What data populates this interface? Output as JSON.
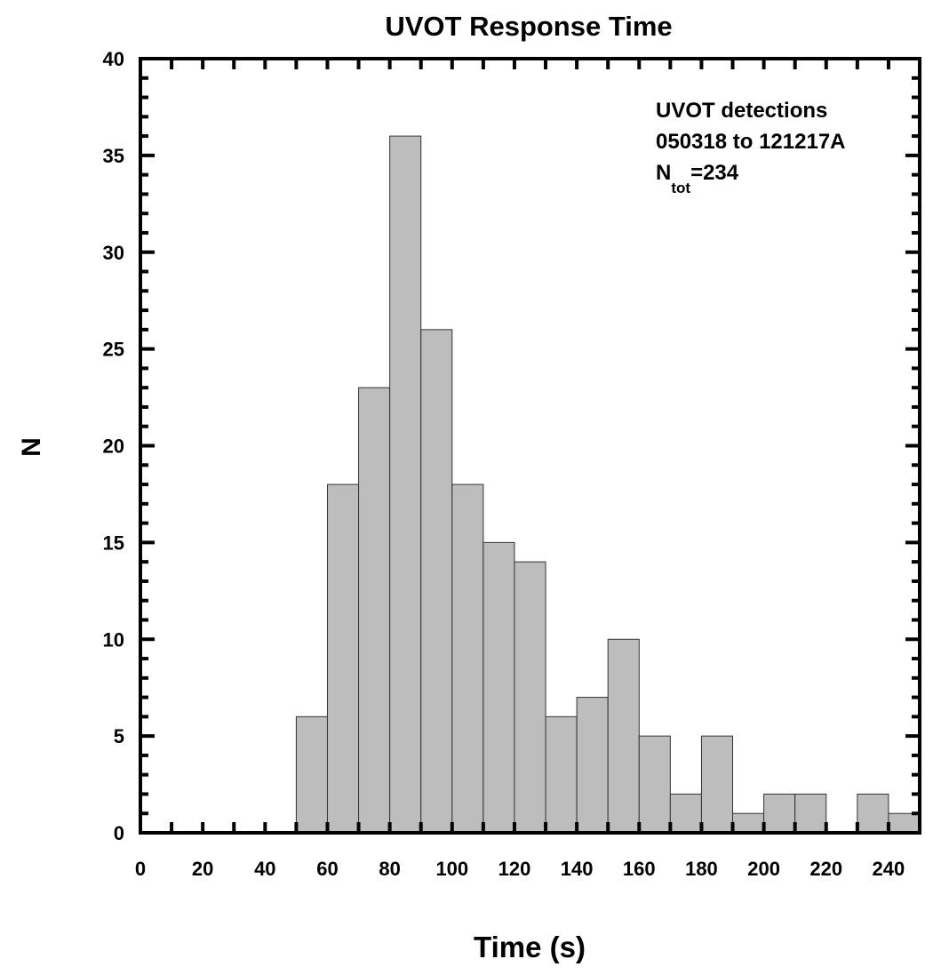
{
  "chart_data": {
    "type": "bar",
    "title": "UVOT Response Time",
    "xlabel": "Time (s)",
    "ylabel": "N",
    "xlim": [
      0,
      250
    ],
    "ylim": [
      0,
      40
    ],
    "bin_width": 10,
    "bins": [
      {
        "x0": 50,
        "x1": 60,
        "value": 6
      },
      {
        "x0": 60,
        "x1": 70,
        "value": 18
      },
      {
        "x0": 70,
        "x1": 80,
        "value": 23
      },
      {
        "x0": 80,
        "x1": 90,
        "value": 36
      },
      {
        "x0": 90,
        "x1": 100,
        "value": 26
      },
      {
        "x0": 100,
        "x1": 110,
        "value": 18
      },
      {
        "x0": 110,
        "x1": 120,
        "value": 15
      },
      {
        "x0": 120,
        "x1": 130,
        "value": 14
      },
      {
        "x0": 130,
        "x1": 140,
        "value": 6
      },
      {
        "x0": 140,
        "x1": 150,
        "value": 7
      },
      {
        "x0": 150,
        "x1": 160,
        "value": 10
      },
      {
        "x0": 160,
        "x1": 170,
        "value": 5
      },
      {
        "x0": 170,
        "x1": 180,
        "value": 2
      },
      {
        "x0": 180,
        "x1": 190,
        "value": 5
      },
      {
        "x0": 190,
        "x1": 200,
        "value": 1
      },
      {
        "x0": 200,
        "x1": 210,
        "value": 2
      },
      {
        "x0": 210,
        "x1": 220,
        "value": 2
      },
      {
        "x0": 220,
        "x1": 230,
        "value": 0
      },
      {
        "x0": 230,
        "x1": 240,
        "value": 2
      },
      {
        "x0": 240,
        "x1": 250,
        "value": 1
      }
    ],
    "xticks": [
      "0",
      "20",
      "40",
      "60",
      "80",
      "100",
      "120",
      "140",
      "160",
      "180",
      "200",
      "220",
      "240"
    ],
    "yticks": [
      "0",
      "5",
      "10",
      "15",
      "20",
      "25",
      "30",
      "35",
      "40"
    ],
    "annotation": {
      "line1": "UVOT detections",
      "line2": "050318 to 121217A",
      "n_main": "N",
      "n_sub": "tot",
      "n_value": "=234"
    },
    "grid": false,
    "bar_color": "#bdbdbd"
  }
}
